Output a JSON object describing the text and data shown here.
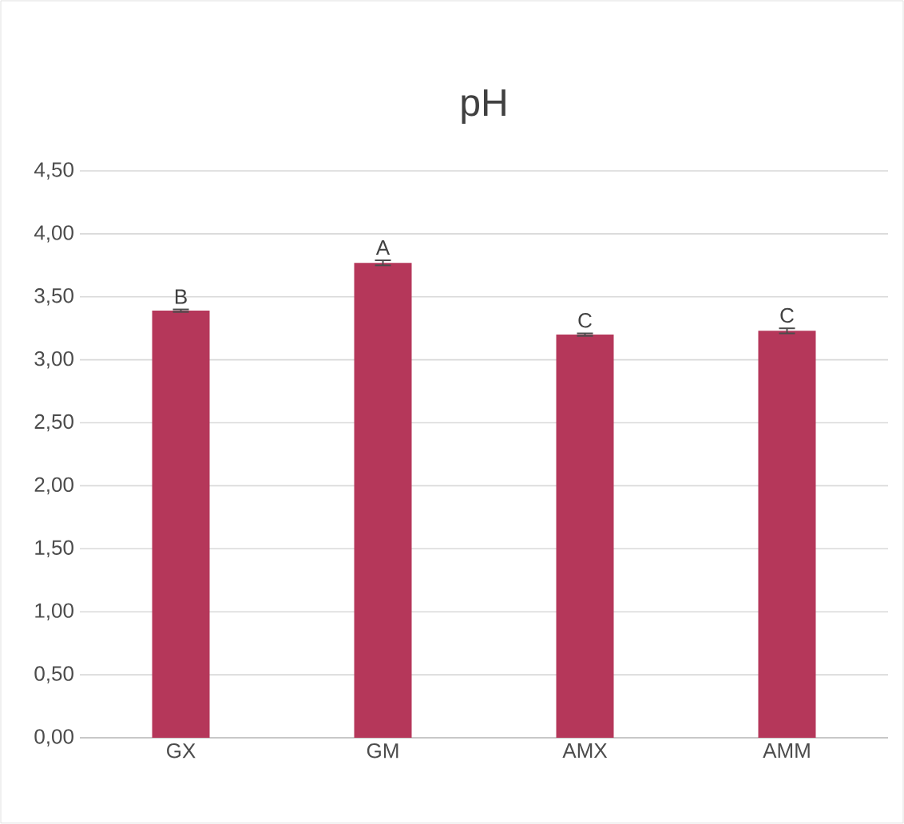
{
  "chart_data": {
    "type": "bar",
    "title": "pH",
    "categories": [
      "GX",
      "GM",
      "AMX",
      "AMM"
    ],
    "values": [
      3.39,
      3.77,
      3.2,
      3.23
    ],
    "errors": [
      0.01,
      0.02,
      0.01,
      0.02
    ],
    "color": "#b5375a",
    "ylim": [
      0,
      4.5
    ],
    "yticks": [
      {
        "value": 0,
        "label": "0,00"
      },
      {
        "value": 0.5,
        "label": "0,50"
      },
      {
        "value": 1,
        "label": "1,00"
      },
      {
        "value": 1.5,
        "label": "1,50"
      },
      {
        "value": 2,
        "label": "2,00"
      },
      {
        "value": 2.5,
        "label": "2,50"
      },
      {
        "value": 3,
        "label": "3,00"
      },
      {
        "value": 3.5,
        "label": "3,50"
      },
      {
        "value": 4,
        "label": "4,00"
      },
      {
        "value": 4.5,
        "label": "4,50"
      }
    ],
    "grid": "y",
    "annotations": [
      {
        "text": "B",
        "x": "GX",
        "y": 3.4
      },
      {
        "text": "A",
        "x": "GM",
        "y": 3.79
      },
      {
        "text": "C",
        "x": "AMX",
        "y": 3.21
      },
      {
        "text": "C",
        "x": "AMM",
        "y": 3.25
      }
    ]
  }
}
